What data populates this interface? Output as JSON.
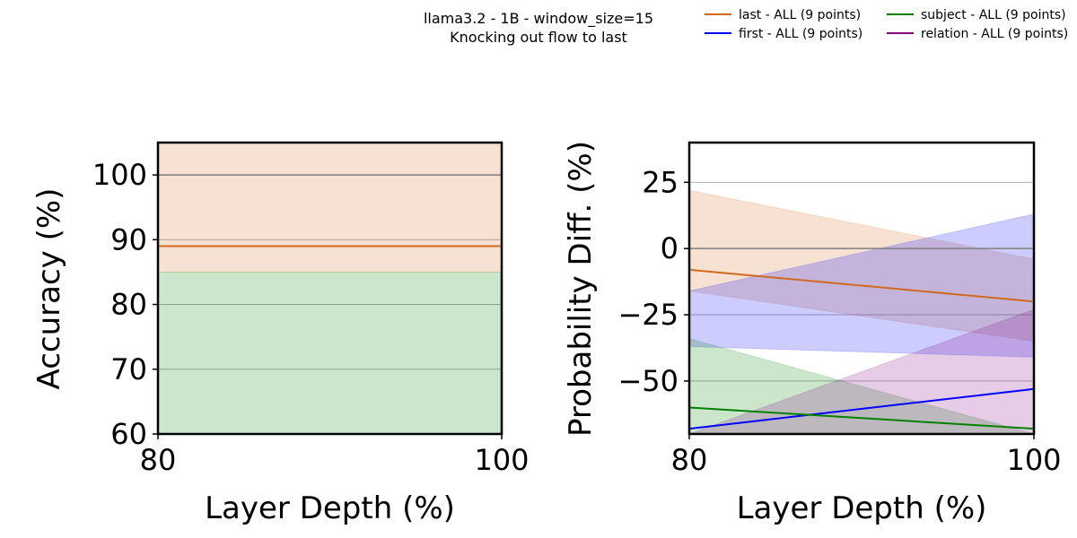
{
  "figure": {
    "title_line1": "llama3.2 - 1B - window_size=15",
    "title_line2": "Knocking out flow to last"
  },
  "legend": {
    "placement": "top-right",
    "entries": [
      {
        "label": "last - ALL (9 points)",
        "color": "#d2691e"
      },
      {
        "label": "first - ALL (9 points)",
        "color": "#0000ff"
      },
      {
        "label": "subject - ALL (9 points)",
        "color": "#008000"
      },
      {
        "label": "relation - ALL (9 points)",
        "color": "#800080"
      }
    ]
  },
  "chart_data": [
    {
      "type": "line",
      "xlabel": "Layer Depth (%)",
      "ylabel": "Accuracy (%)",
      "xlim": [
        80,
        100
      ],
      "ylim": [
        60,
        105
      ],
      "xticks": [
        80,
        100
      ],
      "yticks": [
        60,
        70,
        80,
        90,
        100
      ],
      "grid": true,
      "reference_lines": [
        100
      ],
      "series": [
        {
          "name": "last",
          "color": "#d2691e",
          "x": [
            80,
            100
          ],
          "y": [
            89,
            89
          ],
          "band_low": [
            85,
            85
          ],
          "band_high": [
            105,
            105
          ]
        },
        {
          "name": "first",
          "color": "#0000ff",
          "x": [
            80,
            100
          ],
          "y": [
            null,
            null
          ],
          "band_low": null,
          "band_high": null
        },
        {
          "name": "subject",
          "color": "#008000",
          "x": [
            80,
            100
          ],
          "y": [
            null,
            null
          ],
          "band_low": [
            60,
            60
          ],
          "band_high": [
            85,
            85
          ]
        },
        {
          "name": "relation",
          "color": "#800080",
          "x": [
            80,
            100
          ],
          "y": [
            null,
            null
          ],
          "band_low": null,
          "band_high": null
        }
      ]
    },
    {
      "type": "line",
      "xlabel": "Layer Depth (%)",
      "ylabel": "Probability Diff. (%)",
      "xlim": [
        80,
        100
      ],
      "ylim": [
        -70,
        40
      ],
      "xticks": [
        80,
        100
      ],
      "yticks": [
        -50,
        -25,
        0,
        25
      ],
      "grid": true,
      "reference_lines": [
        0
      ],
      "series": [
        {
          "name": "last",
          "color": "#d2691e",
          "x": [
            80,
            100
          ],
          "y": [
            -8,
            -20
          ],
          "band_low": [
            -16,
            -35
          ],
          "band_high": [
            22,
            -4
          ]
        },
        {
          "name": "first",
          "color": "#0000ff",
          "x": [
            80,
            100
          ],
          "y": [
            -68,
            -53
          ],
          "band_low": [
            -37,
            -41
          ],
          "band_high": [
            -16,
            13
          ]
        },
        {
          "name": "subject",
          "color": "#008000",
          "x": [
            80,
            100
          ],
          "y": [
            -60,
            -68
          ],
          "band_low": [
            -70,
            -70
          ],
          "band_high": [
            -34,
            -70
          ]
        },
        {
          "name": "relation",
          "color": "#800080",
          "x": [
            80,
            100
          ],
          "y": [
            null,
            null
          ],
          "band_low": [
            -70,
            -70
          ],
          "band_high": [
            -70,
            -23
          ]
        }
      ]
    }
  ]
}
